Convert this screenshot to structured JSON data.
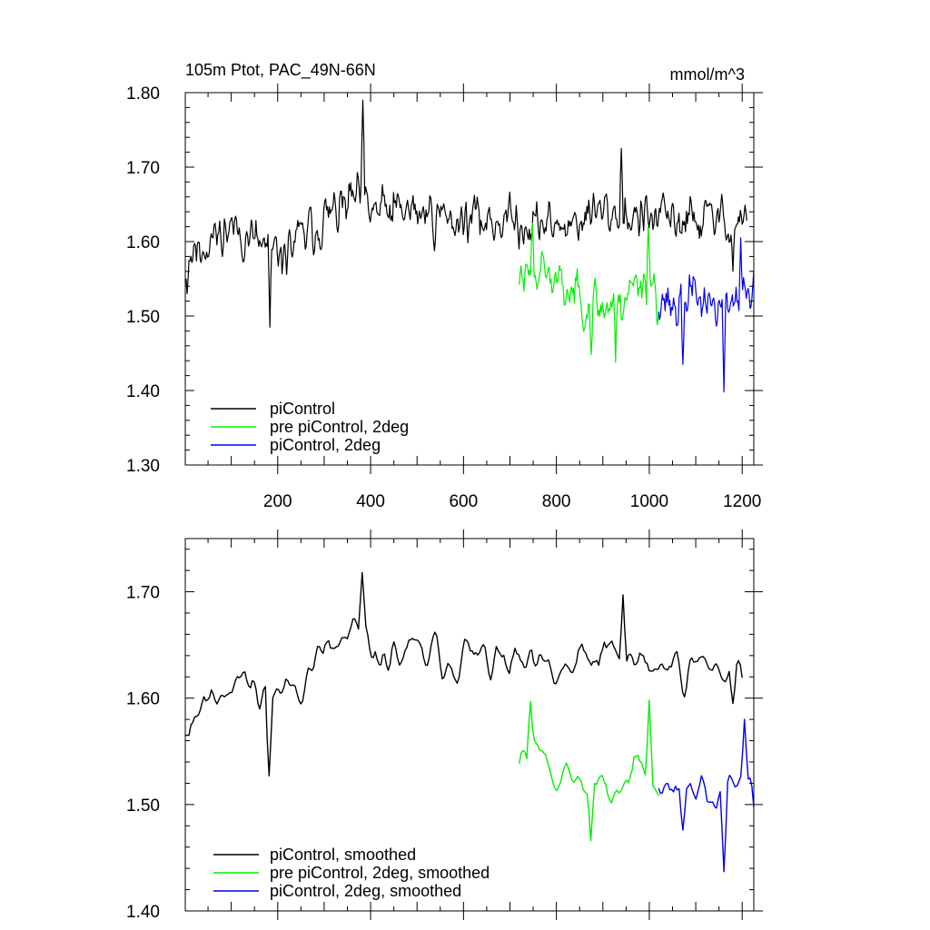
{
  "chart_data": [
    {
      "type": "line",
      "title": "105m Ptot, PAC_49N-66N",
      "units": "mmol/m^3",
      "xlim": [
        1,
        1225
      ],
      "ylim": [
        1.3,
        1.8
      ],
      "xticks": [
        200,
        400,
        600,
        800,
        1000,
        1200
      ],
      "xtick_labels": [
        "200",
        "400",
        "600",
        "800",
        "1000",
        "1200"
      ],
      "yticks": [
        1.3,
        1.4,
        1.5,
        1.6,
        1.7,
        1.8
      ],
      "ytick_labels": [
        "1.30",
        "1.40",
        "1.50",
        "1.60",
        "1.70",
        "1.80"
      ],
      "legend_position": "bottom-left",
      "series": [
        {
          "name": "piControl",
          "color": "#000000",
          "x_start": 1,
          "x_end": 1210,
          "n": 605,
          "seed": 11,
          "key_x": [
            1,
            100,
            200,
            300,
            380,
            400,
            500,
            600,
            700,
            800,
            900,
            1000,
            1100,
            1210
          ],
          "key_y": [
            1.58,
            1.62,
            1.58,
            1.63,
            1.66,
            1.64,
            1.64,
            1.63,
            1.63,
            1.62,
            1.64,
            1.63,
            1.63,
            1.63
          ],
          "noise": 0.027,
          "smooth": 1,
          "peaks": [
            {
              "x": 383,
              "y": 1.79
            },
            {
              "x": 183,
              "y": 1.485
            },
            {
              "x": 5,
              "y": 1.53
            },
            {
              "x": 940,
              "y": 1.725
            },
            {
              "x": 1180,
              "y": 1.56
            }
          ]
        },
        {
          "name": "pre piControl, 2deg",
          "color": "#00ee00",
          "x_start": 720,
          "x_end": 1020,
          "n": 150,
          "seed": 23,
          "key_x": [
            720,
            760,
            800,
            850,
            900,
            950,
            1000,
            1020
          ],
          "key_y": [
            1.56,
            1.57,
            1.54,
            1.53,
            1.51,
            1.53,
            1.56,
            1.52
          ],
          "noise": 0.028,
          "smooth": 1,
          "peaks": [
            {
              "x": 875,
              "y": 1.448
            },
            {
              "x": 928,
              "y": 1.438
            },
            {
              "x": 748,
              "y": 1.625
            },
            {
              "x": 998,
              "y": 1.62
            }
          ]
        },
        {
          "name": "piControl, 2deg",
          "color": "#0000ee",
          "x_start": 1020,
          "x_end": 1225,
          "n": 103,
          "seed": 37,
          "key_x": [
            1020,
            1060,
            1100,
            1150,
            1200,
            1225
          ],
          "key_y": [
            1.53,
            1.51,
            1.53,
            1.51,
            1.53,
            1.52
          ],
          "noise": 0.026,
          "smooth": 1,
          "peaks": [
            {
              "x": 1160,
              "y": 1.398
            },
            {
              "x": 1072,
              "y": 1.435
            },
            {
              "x": 1197,
              "y": 1.605
            }
          ]
        }
      ]
    },
    {
      "type": "line",
      "title": "",
      "xlim": [
        1,
        1225
      ],
      "ylim": [
        1.4,
        1.75
      ],
      "xticks": [
        200,
        400,
        600,
        800,
        1000,
        1200
      ],
      "yticks": [
        1.4,
        1.5,
        1.6,
        1.7
      ],
      "ytick_labels": [
        "1.40",
        "1.50",
        "1.60",
        "1.70"
      ],
      "legend_position": "bottom-left",
      "series": [
        {
          "name": "piControl, smoothed",
          "color": "#000000",
          "x_start": 1,
          "x_end": 1200,
          "n": 300,
          "seed": 11,
          "key_x": [
            1,
            100,
            200,
            300,
            380,
            400,
            500,
            600,
            700,
            800,
            900,
            1000,
            1100,
            1200
          ],
          "key_y": [
            1.58,
            1.62,
            1.6,
            1.64,
            1.66,
            1.64,
            1.64,
            1.64,
            1.63,
            1.62,
            1.64,
            1.63,
            1.63,
            1.63
          ],
          "noise": 0.02,
          "smooth": 2,
          "peaks": [
            {
              "x": 380,
              "y": 1.718
            },
            {
              "x": 183,
              "y": 1.527
            },
            {
              "x": 5,
              "y": 1.565
            },
            {
              "x": 945,
              "y": 1.697
            },
            {
              "x": 1180,
              "y": 1.595
            }
          ]
        },
        {
          "name": "pre piControl, 2deg, smoothed",
          "color": "#00ee00",
          "x_start": 720,
          "x_end": 1020,
          "n": 75,
          "seed": 23,
          "key_x": [
            720,
            760,
            800,
            850,
            900,
            950,
            1000,
            1020
          ],
          "key_y": [
            1.55,
            1.56,
            1.53,
            1.52,
            1.51,
            1.52,
            1.55,
            1.52
          ],
          "noise": 0.018,
          "smooth": 2,
          "peaks": [
            {
              "x": 873,
              "y": 1.466
            },
            {
              "x": 745,
              "y": 1.597
            },
            {
              "x": 1000,
              "y": 1.598
            }
          ]
        },
        {
          "name": "piControl, 2deg, smoothed",
          "color": "#0000ee",
          "x_start": 1020,
          "x_end": 1225,
          "n": 52,
          "seed": 37,
          "key_x": [
            1020,
            1060,
            1100,
            1150,
            1200,
            1225
          ],
          "key_y": [
            1.53,
            1.51,
            1.52,
            1.5,
            1.53,
            1.52
          ],
          "noise": 0.016,
          "smooth": 2,
          "peaks": [
            {
              "x": 1160,
              "y": 1.437
            },
            {
              "x": 1205,
              "y": 1.58
            },
            {
              "x": 1072,
              "y": 1.476
            }
          ]
        }
      ]
    }
  ]
}
